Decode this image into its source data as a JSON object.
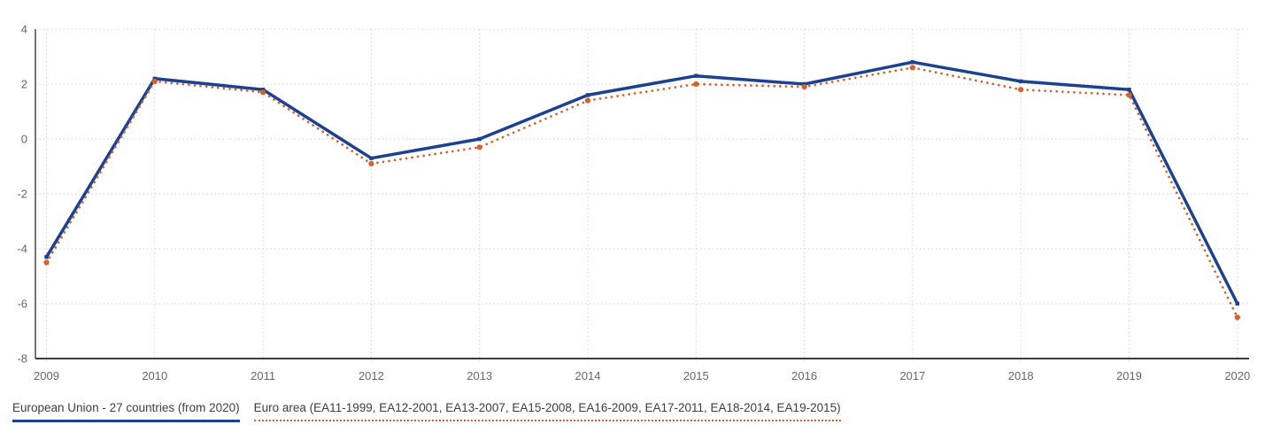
{
  "chart_data": {
    "type": "line",
    "x": [
      2009,
      2010,
      2011,
      2012,
      2013,
      2014,
      2015,
      2016,
      2017,
      2018,
      2019,
      2020
    ],
    "series": [
      {
        "name": "European Union - 27 countries (from 2020)",
        "line_style": "solid",
        "color": "#1c4191",
        "values": [
          -4.3,
          2.2,
          1.8,
          -0.7,
          0.0,
          1.6,
          2.3,
          2.0,
          2.8,
          2.1,
          1.8,
          -6.0
        ]
      },
      {
        "name": "Euro area (EA11-1999, EA12-2001, EA13-2007, EA15-2008, EA16-2009, EA17-2011, EA18-2014, EA19-2015)",
        "line_style": "dotted",
        "color": "#d2622e",
        "values": [
          -4.5,
          2.1,
          1.7,
          -0.9,
          -0.3,
          1.4,
          2.0,
          1.9,
          2.6,
          1.8,
          1.6,
          -6.5
        ]
      }
    ],
    "ylim": [
      -8,
      4
    ],
    "yticks": [
      4,
      2,
      0,
      -2,
      -4,
      -6,
      -8
    ],
    "xlabel": "",
    "ylabel": "",
    "grid": true,
    "legend_position": "bottom"
  },
  "colors": {
    "grid": "#d0d0d0",
    "y_axis": "#757575",
    "x_axis": "#3c3c3c",
    "tick_text": "#666666",
    "legend_text": "#3d3d3d",
    "background": "#ffffff"
  }
}
